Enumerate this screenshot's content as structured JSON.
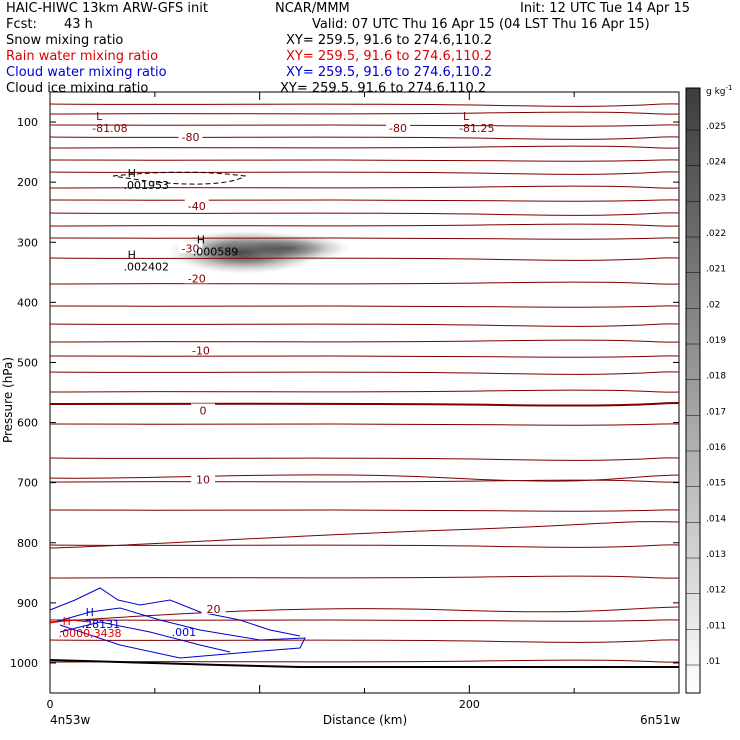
{
  "header": {
    "title": "HAIC-HIWC 13km ARW-GFS init",
    "org": "NCAR/MMM",
    "init": "Init: 12 UTC Tue 14 Apr 15",
    "fcst_label": "Fcst:",
    "fcst_value": "43 h",
    "valid": "Valid: 07 UTC Thu 16 Apr 15 (04 LST Thu 16 Apr 15)"
  },
  "fields": [
    {
      "name": "Snow mixing ratio",
      "xy": "XY= 259.5, 91.6 to 274.6,110.2",
      "color": "#000000"
    },
    {
      "name": "Rain water mixing ratio",
      "xy": "XY= 259.5, 91.6 to 274.6,110.2",
      "color": "#e00000"
    },
    {
      "name": "Cloud water mixing ratio",
      "xy": "XY= 259.5, 91.6 to 274.6,110.2",
      "color": "#0000d0"
    },
    {
      "name": "Cloud ice mixing ratio",
      "xy": "XY= 259.5, 91.6 to 274.6,110.2",
      "color": "#000000"
    }
  ],
  "chart_data": {
    "type": "cross-section",
    "xlabel": "Distance (km)",
    "ylabel": "Pressure (hPa)",
    "x_ticks": [
      "0",
      "200"
    ],
    "xlim": [
      0,
      300
    ],
    "x_endpoints": {
      "left": "4n53w",
      "right": "6n51w"
    },
    "y_ticks": [
      100,
      200,
      300,
      400,
      500,
      600,
      700,
      800,
      900,
      1000
    ],
    "ylim": [
      1050,
      50
    ],
    "colorbar": {
      "unit": "g kg",
      "unit_exp": "-1",
      "ticks": [
        ".01",
        ".011",
        ".012",
        ".013",
        ".014",
        ".015",
        ".016",
        ".017",
        ".018",
        ".019",
        ".02",
        ".021",
        ".022",
        ".023",
        ".024",
        ".025"
      ]
    },
    "temperature_labels": [
      {
        "text": "-80",
        "x": 67,
        "p": 125
      },
      {
        "text": "-80",
        "x": 166,
        "p": 110
      },
      {
        "text": "-40",
        "x": 70,
        "p": 240
      },
      {
        "text": "-30",
        "x": 67,
        "p": 310
      },
      {
        "text": "-20",
        "x": 70,
        "p": 360
      },
      {
        "text": "-10",
        "x": 72,
        "p": 480
      },
      {
        "text": "0",
        "x": 73,
        "p": 580
      },
      {
        "text": "10",
        "x": 73,
        "p": 695
      },
      {
        "text": "20",
        "x": 78,
        "p": 910
      }
    ],
    "extrema": [
      {
        "type": "L",
        "value": "-81.08",
        "x": 22,
        "p": 100,
        "color": "#800000"
      },
      {
        "type": "L",
        "value": "-81.25",
        "x": 197,
        "p": 100,
        "color": "#800000"
      },
      {
        "type": "H",
        "value": ".001953",
        "x": 37,
        "p": 195,
        "color": "#000000"
      },
      {
        "type": "H",
        "value": ".002402",
        "x": 37,
        "p": 330,
        "color": "#000000"
      },
      {
        "type": "H",
        "value": ".000589",
        "x": 70,
        "p": 305,
        "color": "#000000"
      },
      {
        "type": "H",
        "value": ".28131",
        "x": 17,
        "p": 925,
        "color": "#0000d0"
      },
      {
        "type": "H",
        "value": ".0000,3438",
        "x": 6,
        "p": 940,
        "color": "#e00000"
      },
      {
        "type": "label",
        "value": ".001",
        "x": 58,
        "p": 955,
        "color": "#0000d0"
      }
    ],
    "snow_max": {
      "x": 47,
      "p": 318,
      "value": 0.0024
    }
  },
  "colors": {
    "isotherm": "#800000",
    "cloud_water": "#0000d0",
    "rain": "#e00000"
  }
}
